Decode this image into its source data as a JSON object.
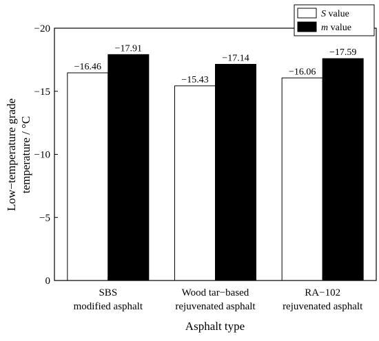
{
  "chart_data": {
    "type": "bar",
    "categories": [
      [
        "SBS",
        "modified asphalt"
      ],
      [
        "Wood tar−based",
        "rejuvenated asphalt"
      ],
      [
        "RA−102",
        "rejuvenated asphalt"
      ]
    ],
    "series": [
      {
        "name": "S value",
        "name_italic": "S",
        "name_rest": " value",
        "color": "#ffffff",
        "values": [
          -16.46,
          -15.43,
          -16.06
        ],
        "labels": [
          "−16.46",
          "−15.43",
          "−16.06"
        ]
      },
      {
        "name": "m value",
        "name_italic": "m",
        "name_rest": " value",
        "color": "#000000",
        "values": [
          -17.91,
          -17.14,
          -17.59
        ],
        "labels": [
          "−17.91",
          "−17.14",
          "−17.59"
        ]
      }
    ],
    "xlabel": "Asphalt type",
    "ylabel_lines": [
      "Low−temperature grade",
      "temperature  / °C"
    ],
    "ylim": [
      0,
      -20
    ],
    "yticks": [
      0,
      -5,
      -10,
      -15,
      -20
    ],
    "ytick_labels": [
      "0",
      "−5",
      "−10",
      "−15",
      "−20"
    ],
    "legend_position": "top-right",
    "grid": false
  }
}
